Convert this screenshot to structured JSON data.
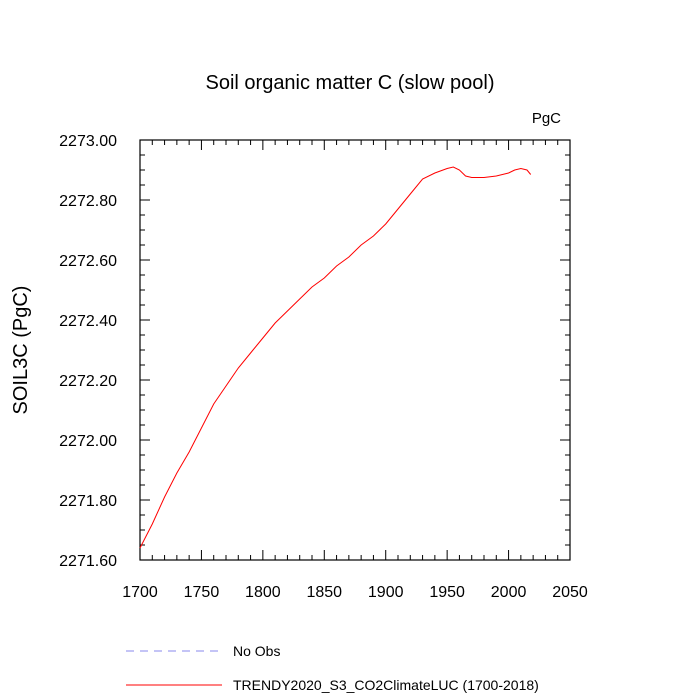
{
  "chart_data": {
    "type": "line",
    "title": "Soil organic matter C (slow pool)",
    "units": "PgC",
    "xlabel": "",
    "ylabel": "SOIL3C  (PgC)",
    "xlim": [
      1700,
      2050
    ],
    "ylim": [
      2271.6,
      2273.0
    ],
    "x_ticks": [
      "1700",
      "1750",
      "1800",
      "1850",
      "1900",
      "1950",
      "2000",
      "2050"
    ],
    "y_ticks": [
      "2271.60",
      "2271.80",
      "2272.00",
      "2272.20",
      "2272.40",
      "2272.60",
      "2272.80",
      "2273.00"
    ],
    "grid": false,
    "legend_position": "bottom",
    "series": [
      {
        "name": "No Obs",
        "color": "#8888ee",
        "dash": "dashed",
        "x": [],
        "y": []
      },
      {
        "name": "TRENDY2020_S3_CO2ClimateLUC (1700-2018)",
        "color": "#ff0000",
        "dash": "solid",
        "x": [
          1700,
          1710,
          1720,
          1730,
          1740,
          1750,
          1760,
          1770,
          1780,
          1790,
          1800,
          1810,
          1820,
          1830,
          1840,
          1850,
          1860,
          1870,
          1880,
          1890,
          1900,
          1910,
          1920,
          1930,
          1940,
          1950,
          1955,
          1960,
          1965,
          1970,
          1980,
          1990,
          2000,
          2005,
          2010,
          2015,
          2018
        ],
        "y": [
          2271.64,
          2271.72,
          2271.81,
          2271.89,
          2271.96,
          2272.04,
          2272.12,
          2272.18,
          2272.24,
          2272.29,
          2272.34,
          2272.39,
          2272.43,
          2272.47,
          2272.51,
          2272.54,
          2272.58,
          2272.61,
          2272.65,
          2272.68,
          2272.72,
          2272.77,
          2272.82,
          2272.87,
          2272.89,
          2272.905,
          2272.91,
          2272.9,
          2272.88,
          2272.875,
          2272.875,
          2272.88,
          2272.89,
          2272.9,
          2272.905,
          2272.9,
          2272.885
        ]
      }
    ]
  }
}
